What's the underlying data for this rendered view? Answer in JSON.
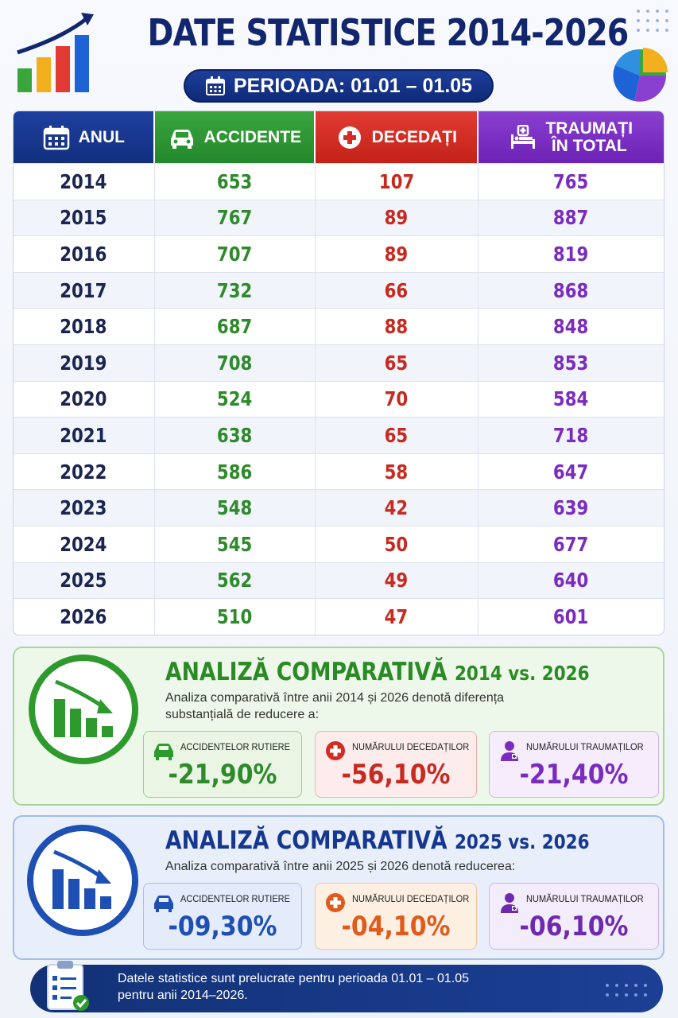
{
  "header": {
    "title": "DATE STATISTICE 2014-2026",
    "period": "PERIOADA: 01.01 – 01.05"
  },
  "table": {
    "headers": {
      "year": "ANUL",
      "accidents": "ACCIDENTE",
      "deaths": "DECEDAȚI",
      "injured_line1": "TRAUMAȚI",
      "injured_line2": "ÎN TOTAL"
    },
    "rows": [
      {
        "year": "2014",
        "accidents": "653",
        "deaths": "107",
        "injured": "765"
      },
      {
        "year": "2015",
        "accidents": "767",
        "deaths": "89",
        "injured": "887"
      },
      {
        "year": "2016",
        "accidents": "707",
        "deaths": "89",
        "injured": "819"
      },
      {
        "year": "2017",
        "accidents": "732",
        "deaths": "66",
        "injured": "868"
      },
      {
        "year": "2018",
        "accidents": "687",
        "deaths": "88",
        "injured": "848"
      },
      {
        "year": "2019",
        "accidents": "708",
        "deaths": "65",
        "injured": "853"
      },
      {
        "year": "2020",
        "accidents": "524",
        "deaths": "70",
        "injured": "584"
      },
      {
        "year": "2021",
        "accidents": "638",
        "deaths": "65",
        "injured": "718"
      },
      {
        "year": "2022",
        "accidents": "586",
        "deaths": "58",
        "injured": "647"
      },
      {
        "year": "2023",
        "accidents": "548",
        "deaths": "42",
        "injured": "639"
      },
      {
        "year": "2024",
        "accidents": "545",
        "deaths": "50",
        "injured": "677"
      },
      {
        "year": "2025",
        "accidents": "562",
        "deaths": "49",
        "injured": "640"
      },
      {
        "year": "2026",
        "accidents": "510",
        "deaths": "47",
        "injured": "601"
      }
    ]
  },
  "comparison_1": {
    "title_main": "ANALIZĂ COMPARATIVĂ",
    "title_years": "2014 vs. 2026",
    "description": "Analiza comparativă între anii 2014 și 2026 denotă diferența substanțială de reducere a:",
    "stats": [
      {
        "label": "ACCIDENTELOR RUTIERE",
        "value": "-21,90%"
      },
      {
        "label": "NUMĂRULUI DECEDAȚILOR",
        "value": "-56,10%"
      },
      {
        "label": "NUMĂRULUI TRAUMAȚILOR",
        "value": "-21,40%"
      }
    ]
  },
  "comparison_2": {
    "title_main": "ANALIZĂ COMPARATIVĂ",
    "title_years": "2025 vs. 2026",
    "description": "Analiza comparativă între anii 2025 și 2026 denotă reducerea:",
    "stats": [
      {
        "label": "ACCIDENTELOR RUTIERE",
        "value": "-09,30%"
      },
      {
        "label": "NUMĂRULUI DECEDAȚILOR",
        "value": "-04,10%"
      },
      {
        "label": "NUMĂRULUI TRAUMAȚILOR",
        "value": "-06,10%"
      }
    ]
  },
  "footer": {
    "line1": "Datele statistice sunt prelucrate pentru perioada 01.01 – 01.05",
    "line2": "pentru anii 2014–2026."
  },
  "colors": {
    "navy": "#12266e",
    "green": "#2f8a2c",
    "red": "#c62a20",
    "purple": "#7a2cbf",
    "blue": "#1e4fb3",
    "orange": "#e05a1c"
  },
  "icons": {
    "header_left": "bar-chart-growth-icon",
    "header_right": "pie-chart-icon",
    "year": "calendar-icon",
    "accidents": "car-icon",
    "deaths": "medical-cross-icon",
    "injured": "hospital-bed-icon",
    "comparison": "declining-bar-chart-icon",
    "footer": "clipboard-check-icon"
  }
}
